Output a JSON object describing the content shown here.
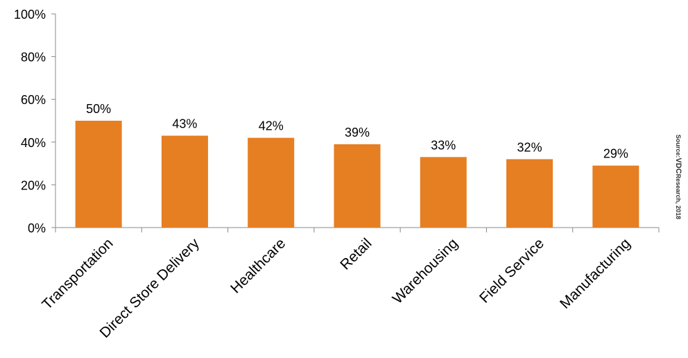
{
  "chart_data": {
    "type": "bar",
    "categories": [
      "Transportation",
      "Direct Store Delivery",
      "Healthcare",
      "Retail",
      "Warehousing",
      "Field Service",
      "Manufacturing"
    ],
    "values": [
      50,
      43,
      42,
      39,
      33,
      32,
      29
    ],
    "data_labels": [
      "50%",
      "43%",
      "42%",
      "39%",
      "33%",
      "32%",
      "29%"
    ],
    "ylim": [
      0,
      100
    ],
    "yticks": [
      0,
      20,
      40,
      60,
      80,
      100
    ],
    "ytick_labels": [
      "0%",
      "20%",
      "40%",
      "60%",
      "80%",
      "100%"
    ],
    "title": "",
    "xlabel": "",
    "ylabel": "",
    "grid": false,
    "bar_color": "#e67e22"
  },
  "source": {
    "prefix": "Source:",
    "brand": "VDC",
    "suffix": "Research, 2018"
  }
}
